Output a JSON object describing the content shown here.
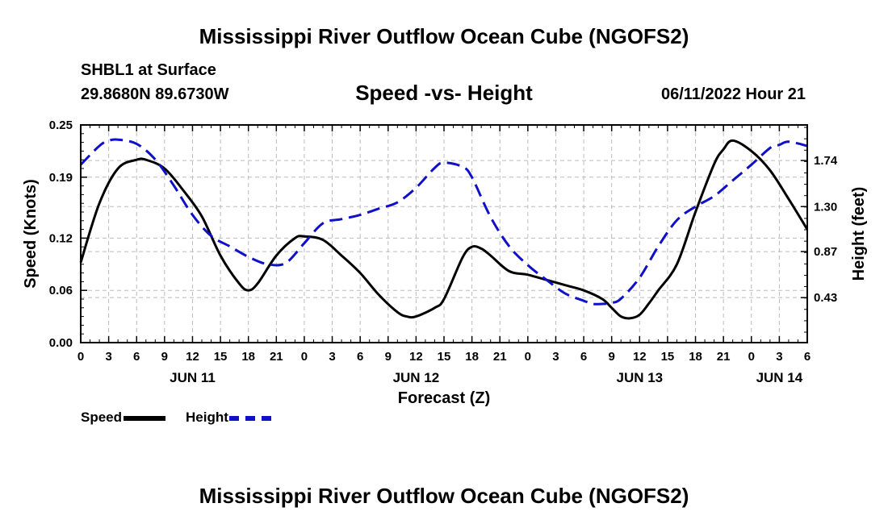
{
  "page": {
    "main_title": "Mississippi River Outflow Ocean Cube (NGOFS2)",
    "footer_title": "Mississippi River Outflow Ocean Cube (NGOFS2)",
    "station": "SHBL1 at Surface",
    "coords": "29.8680N  89.6730W",
    "subtitle": "Speed -vs- Height",
    "timestamp": "06/11/2022 Hour 21"
  },
  "legend": {
    "speed_label": "Speed",
    "height_label": "Height"
  },
  "chart_data": {
    "type": "line",
    "title": "Speed -vs- Height",
    "xlabel": "Forecast (Z)",
    "ylabel_left": "Speed (Knots)",
    "ylabel_right": "Height (feet)",
    "x_range": [
      0,
      78
    ],
    "hour_ticks": [
      0,
      3,
      6,
      9,
      12,
      15,
      18,
      21,
      24,
      27,
      30,
      33,
      36,
      39,
      42,
      45,
      48,
      51,
      54,
      57,
      60,
      63,
      66,
      69,
      72,
      75,
      78
    ],
    "hour_tick_labels": [
      "0",
      "3",
      "6",
      "9",
      "12",
      "15",
      "18",
      "21",
      "0",
      "3",
      "6",
      "9",
      "12",
      "15",
      "18",
      "21",
      "0",
      "3",
      "6",
      "9",
      "12",
      "15",
      "18",
      "21",
      "0",
      "3",
      "6"
    ],
    "day_labels": [
      {
        "label": "JUN 11",
        "hour": 12
      },
      {
        "label": "JUN 12",
        "hour": 36
      },
      {
        "label": "JUN 13",
        "hour": 60
      },
      {
        "label": "JUN 14",
        "hour": 75
      }
    ],
    "left_axis": {
      "min": 0,
      "max": 0.25,
      "ticks": [
        0.0,
        0.06,
        0.12,
        0.19,
        0.25
      ],
      "tick_labels": [
        "0.00",
        "0.06",
        "0.12",
        "0.19",
        "0.25"
      ]
    },
    "right_axis": {
      "min": 0,
      "max": 2.08,
      "ticks": [
        0.43,
        0.87,
        1.3,
        1.74
      ],
      "tick_labels": [
        "0.43",
        "0.87",
        "1.30",
        "1.74"
      ]
    },
    "series": [
      {
        "name": "Speed",
        "axis": "left",
        "color": "#000000",
        "style": "solid",
        "x": [
          0,
          2,
          4,
          6,
          7,
          9,
          11,
          13,
          15,
          17,
          18,
          19,
          21,
          23,
          24,
          26,
          28,
          30,
          32,
          34,
          35,
          36,
          38,
          39,
          41,
          42,
          43,
          44,
          46,
          48,
          50,
          52,
          54,
          56,
          57,
          58,
          59,
          60,
          61,
          62,
          64,
          66,
          68,
          69,
          70,
          72,
          74,
          76,
          78
        ],
        "values": [
          0.092,
          0.16,
          0.2,
          0.21,
          0.21,
          0.2,
          0.175,
          0.145,
          0.1,
          0.068,
          0.06,
          0.068,
          0.1,
          0.12,
          0.122,
          0.118,
          0.1,
          0.08,
          0.055,
          0.035,
          0.03,
          0.03,
          0.04,
          0.05,
          0.098,
          0.11,
          0.108,
          0.1,
          0.082,
          0.078,
          0.072,
          0.066,
          0.06,
          0.05,
          0.04,
          0.03,
          0.028,
          0.032,
          0.045,
          0.06,
          0.09,
          0.15,
          0.205,
          0.222,
          0.232,
          0.22,
          0.198,
          0.165,
          0.13
        ]
      },
      {
        "name": "Height",
        "axis": "right",
        "color": "#1010c8",
        "style": "dashed",
        "x": [
          0,
          2,
          3,
          4,
          6,
          8,
          10,
          12,
          14,
          16,
          18,
          20,
          22,
          24,
          26,
          28,
          30,
          32,
          34,
          36,
          38,
          39,
          41,
          42,
          44,
          46,
          48,
          50,
          52,
          54,
          55,
          56,
          57,
          58,
          60,
          62,
          64,
          66,
          68,
          70,
          72,
          74,
          75,
          76,
          78
        ],
        "values": [
          1.7,
          1.88,
          1.93,
          1.94,
          1.9,
          1.75,
          1.5,
          1.22,
          1.02,
          0.92,
          0.82,
          0.75,
          0.76,
          0.95,
          1.14,
          1.18,
          1.22,
          1.28,
          1.34,
          1.48,
          1.67,
          1.72,
          1.68,
          1.58,
          1.2,
          0.92,
          0.74,
          0.6,
          0.47,
          0.4,
          0.37,
          0.37,
          0.38,
          0.42,
          0.62,
          0.92,
          1.17,
          1.3,
          1.4,
          1.55,
          1.7,
          1.86,
          1.89,
          1.92,
          1.88
        ]
      }
    ]
  }
}
